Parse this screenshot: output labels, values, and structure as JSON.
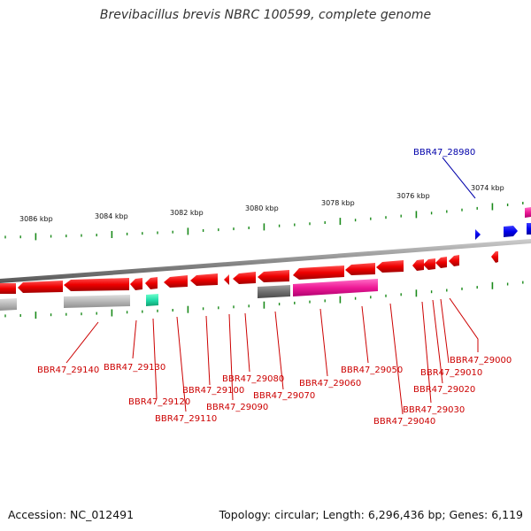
{
  "title": "Brevibacillus brevis NBRC 100599, complete genome",
  "footer": {
    "accession": "Accession: NC_012491",
    "topology": "Topology: circular; Length: 6,296,436 bp; Genes: 6,119"
  },
  "scale_labels": [
    "3086 kbp",
    "3084 kbp",
    "3082 kbp",
    "3080 kbp",
    "3078 kbp",
    "3076 kbp",
    "3074 kbp"
  ],
  "gene_labels": [
    "BBR47_28980",
    "BBR47_29000",
    "BBR47_29010",
    "BBR47_29020",
    "BBR47_29030",
    "BBR47_29040",
    "BBR47_29050",
    "BBR47_29060",
    "BBR47_29070",
    "BBR47_29080",
    "BBR47_29090",
    "BBR47_29100",
    "BBR47_29110",
    "BBR47_29120",
    "BBR47_29130",
    "BBR47_29140"
  ],
  "colors": {
    "cds": "#ee0000",
    "rna": "#ff2da0",
    "pseudo": "#808080",
    "other": "#b0b0b0",
    "trna": "#22ddaa",
    "forward": "#0000ee",
    "backbone": "#8c8c8c",
    "tick": "#1a8a1a"
  }
}
